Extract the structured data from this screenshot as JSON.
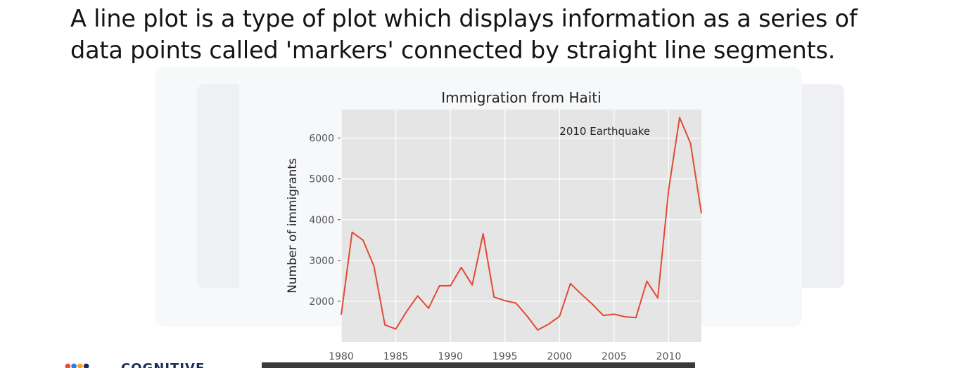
{
  "slide": {
    "text": "A line plot is a type of plot which displays information as a series of data points called 'markers' connected by straight line segments."
  },
  "logo": {
    "text": "COGNITIVE"
  },
  "chart_data": {
    "type": "line",
    "title": "Immigration from Haiti",
    "xlabel": "",
    "ylabel": "Number of immigrants",
    "xlim": [
      1980,
      2013
    ],
    "ylim": [
      1000,
      6700
    ],
    "xticks": [
      1980,
      1985,
      1990,
      1995,
      2000,
      2005,
      2010
    ],
    "yticks": [
      2000,
      3000,
      4000,
      5000,
      6000
    ],
    "grid": true,
    "series": [
      {
        "color": "#e24a33",
        "x": [
          1980,
          1981,
          1982,
          1983,
          1984,
          1985,
          1986,
          1987,
          1988,
          1989,
          1990,
          1991,
          1992,
          1993,
          1994,
          1995,
          1996,
          1997,
          1998,
          1999,
          2000,
          2001,
          2002,
          2003,
          2004,
          2005,
          2006,
          2007,
          2008,
          2009,
          2010,
          2011,
          2012,
          2013
        ],
        "y": [
          1666,
          3692,
          3498,
          2860,
          1418,
          1321,
          1753,
          2132,
          1829,
          2377,
          2379,
          2829,
          2399,
          3655,
          2100,
          2014,
          1955,
          1645,
          1295,
          1439,
          1631,
          2433,
          2174,
          1930,
          1652,
          1682,
          1619,
          1598,
          2491,
          2080,
          4744,
          6503,
          5868,
          4152
        ]
      }
    ],
    "annotations": [
      {
        "text": "2010 Earthquake",
        "x": 2000,
        "y": 6080
      }
    ],
    "colors": {
      "plot_bg": "#e5e5e5",
      "grid": "#ffffff",
      "line": "#e24a33",
      "text": "#222222",
      "tick": "#555555"
    }
  }
}
